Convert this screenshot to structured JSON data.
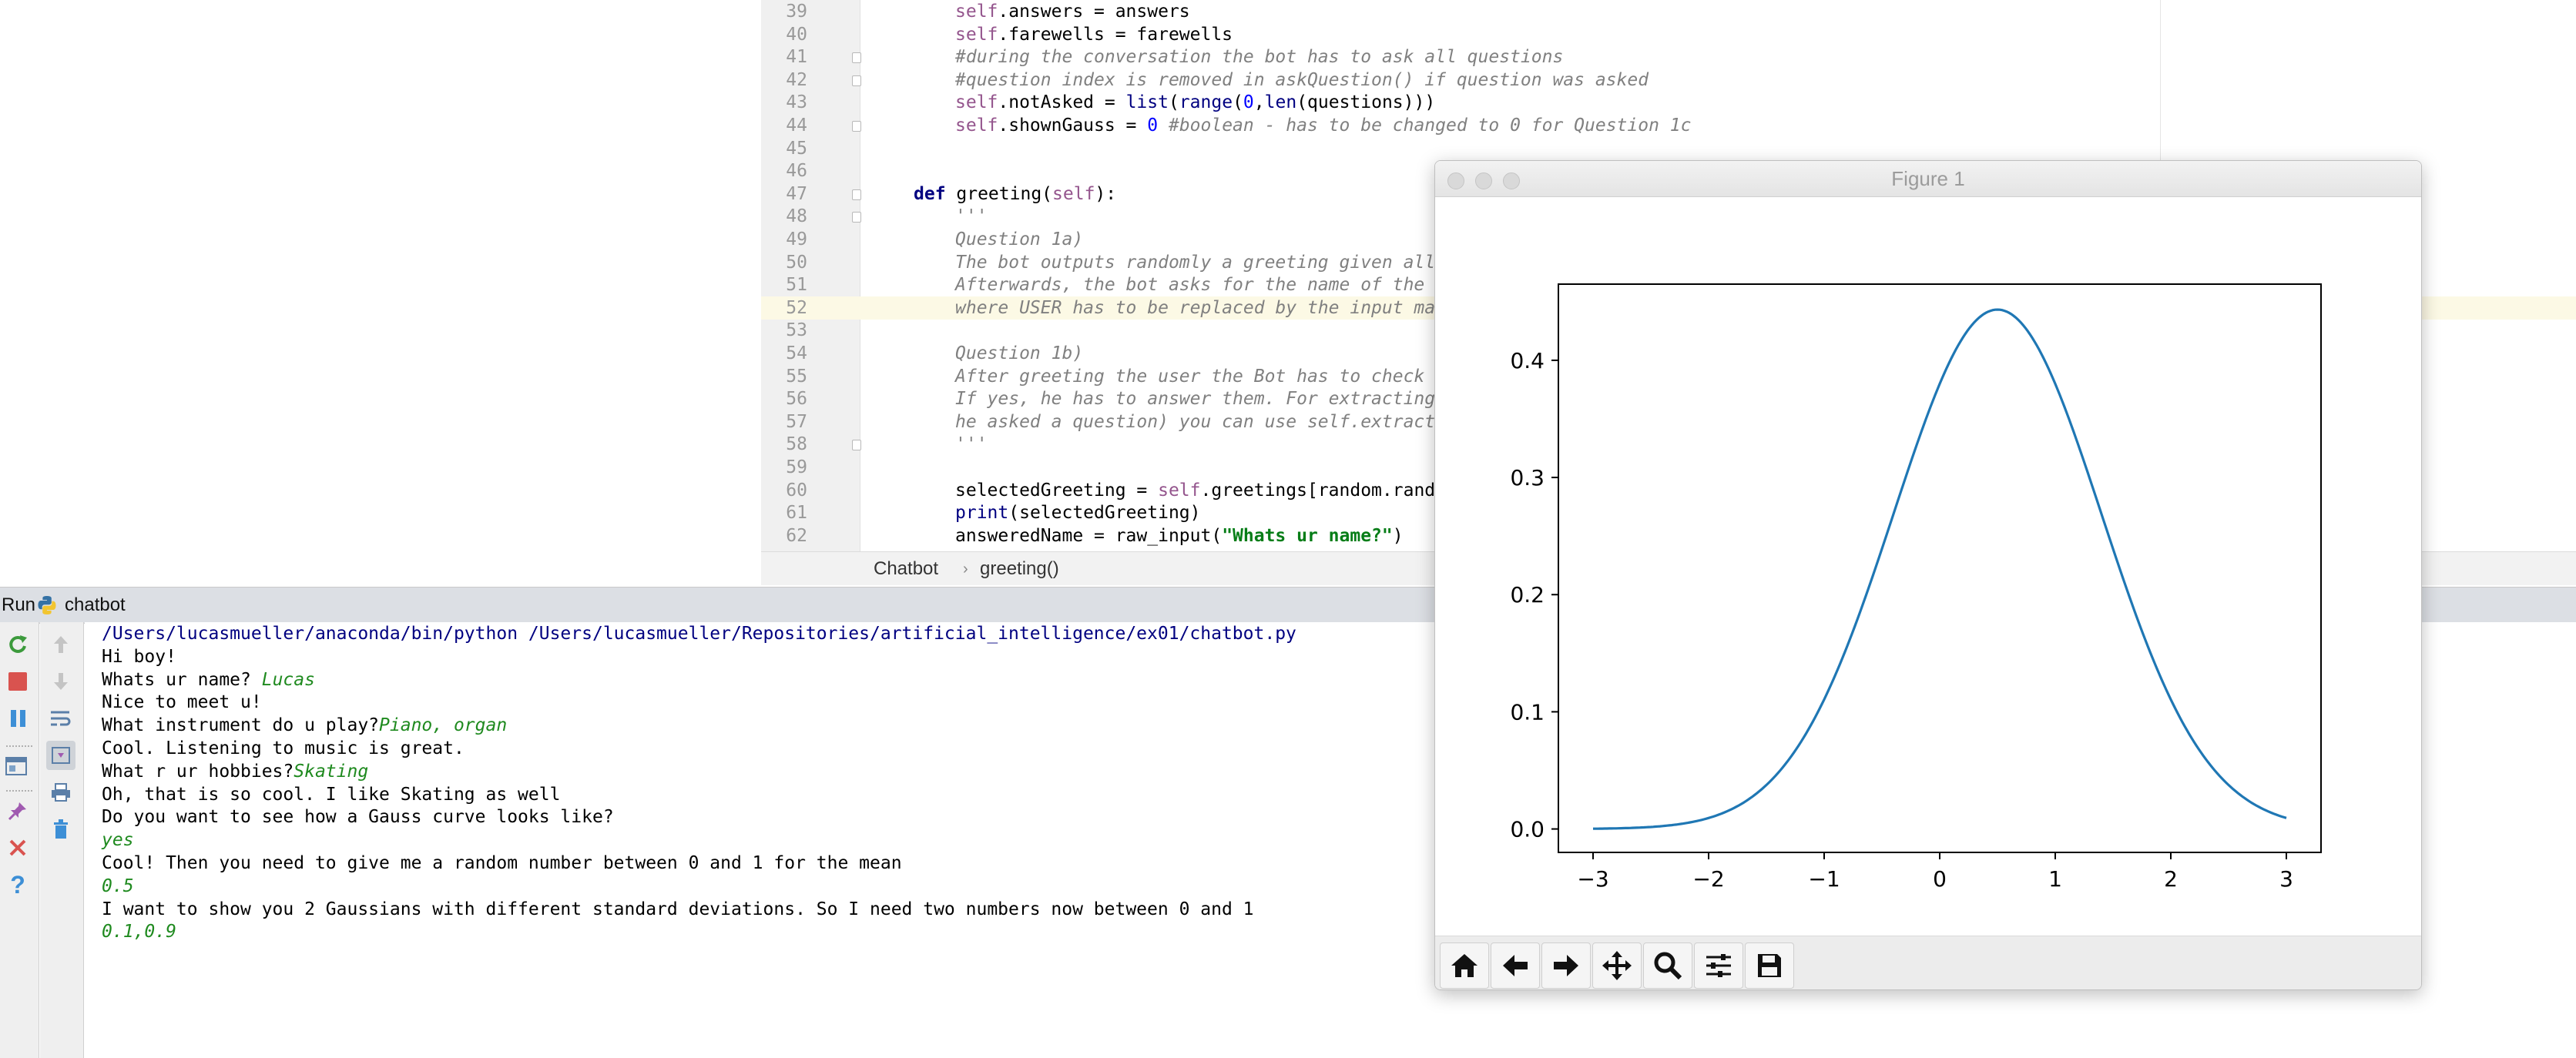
{
  "editor": {
    "lines": [
      {
        "n": "39",
        "segments": [
          {
            "t": "self",
            "c": "self"
          },
          {
            "t": ".answers = answers",
            "c": ""
          }
        ]
      },
      {
        "n": "40",
        "segments": [
          {
            "t": "self",
            "c": "self"
          },
          {
            "t": ".farewells = farewells",
            "c": ""
          }
        ]
      },
      {
        "n": "41",
        "segments": [
          {
            "t": "#during the conversation the bot has to ask all questions",
            "c": "cm"
          }
        ],
        "fold": true
      },
      {
        "n": "42",
        "segments": [
          {
            "t": "#question index is removed in askQuestion() if question was asked",
            "c": "cm"
          }
        ],
        "fold": true
      },
      {
        "n": "43",
        "segments": [
          {
            "t": "self",
            "c": "self"
          },
          {
            "t": ".notAsked = ",
            "c": ""
          },
          {
            "t": "list",
            "c": "builtin"
          },
          {
            "t": "(",
            "c": ""
          },
          {
            "t": "range",
            "c": "builtin"
          },
          {
            "t": "(",
            "c": ""
          },
          {
            "t": "0",
            "c": "num"
          },
          {
            "t": ",",
            "c": ""
          },
          {
            "t": "len",
            "c": "builtin"
          },
          {
            "t": "(questions)))",
            "c": ""
          }
        ]
      },
      {
        "n": "44",
        "segments": [
          {
            "t": "self",
            "c": "self"
          },
          {
            "t": ".shownGauss = ",
            "c": ""
          },
          {
            "t": "0",
            "c": "num"
          },
          {
            "t": " #boolean - has to be changed to 0 for Question 1c",
            "c": "cm"
          }
        ],
        "fold": true
      },
      {
        "n": "45",
        "segments": []
      },
      {
        "n": "46",
        "segments": []
      },
      {
        "n": "47",
        "segments": [
          {
            "t": "def ",
            "c": "kw"
          },
          {
            "t": "greeting",
            "c": "fn"
          },
          {
            "t": "(",
            "c": ""
          },
          {
            "t": "self",
            "c": "self"
          },
          {
            "t": "):",
            "c": ""
          }
        ],
        "fold": true,
        "indent": 1
      },
      {
        "n": "48",
        "segments": [
          {
            "t": "'''",
            "c": "cm"
          }
        ],
        "fold": true
      },
      {
        "n": "49",
        "segments": [
          {
            "t": "Question 1a)",
            "c": "cm"
          }
        ]
      },
      {
        "n": "50",
        "segments": [
          {
            "t": "The bot outputs randomly a greeting given all",
            "c": "cm"
          }
        ]
      },
      {
        "n": "51",
        "segments": [
          {
            "t": "Afterwards, the bot asks for the name of the",
            "c": "cm"
          }
        ]
      },
      {
        "n": "52",
        "segments": [
          {
            "t": "where USER has to be replaced by the input ma",
            "c": "cm"
          }
        ],
        "highlight": true
      },
      {
        "n": "53",
        "segments": []
      },
      {
        "n": "54",
        "segments": [
          {
            "t": "Question 1b)",
            "c": "cm"
          }
        ]
      },
      {
        "n": "55",
        "segments": [
          {
            "t": "After greeting the user the Bot has to check",
            "c": "cm"
          }
        ]
      },
      {
        "n": "56",
        "segments": [
          {
            "t": "If yes, he has to answer them. For extracting",
            "c": "cm"
          }
        ]
      },
      {
        "n": "57",
        "segments": [
          {
            "t": "he asked a question) you can use self.extract",
            "c": "cm"
          }
        ]
      },
      {
        "n": "58",
        "segments": [
          {
            "t": "'''",
            "c": "cm"
          }
        ],
        "fold": true
      },
      {
        "n": "59",
        "segments": []
      },
      {
        "n": "60",
        "segments": [
          {
            "t": "selectedGreeting = ",
            "c": ""
          },
          {
            "t": "self",
            "c": "self"
          },
          {
            "t": ".greetings[random.rand",
            "c": ""
          }
        ]
      },
      {
        "n": "61",
        "segments": [
          {
            "t": "print",
            "c": "builtin"
          },
          {
            "t": "(selectedGreeting)",
            "c": ""
          }
        ]
      },
      {
        "n": "62",
        "segments": [
          {
            "t": "answeredName = raw_input(",
            "c": ""
          },
          {
            "t": "\"Whats ur name?\"",
            "c": "str"
          },
          {
            "t": ")",
            "c": ""
          }
        ]
      }
    ],
    "breadcrumb": {
      "class_name": "Chatbot",
      "method_name": "greeting()"
    }
  },
  "run_panel": {
    "label": "Run",
    "tab_name": "chatbot",
    "console": [
      {
        "text": "/Users/lucasmueller/anaconda/bin/python /Users/lucasmueller/Repositories/artificial_intelligence/ex01/chatbot.py",
        "kind": "path"
      },
      {
        "text": "Hi boy!",
        "kind": "out"
      },
      {
        "parts": [
          {
            "text": "Whats ur name? ",
            "kind": "out"
          },
          {
            "text": "Lucas",
            "kind": "in"
          }
        ]
      },
      {
        "text": "Nice to meet u!",
        "kind": "out"
      },
      {
        "parts": [
          {
            "text": "What instrument do u play?",
            "kind": "out"
          },
          {
            "text": "Piano, organ",
            "kind": "in"
          }
        ]
      },
      {
        "text": "Cool. Listening to music is great.",
        "kind": "out"
      },
      {
        "parts": [
          {
            "text": "What r ur hobbies?",
            "kind": "out"
          },
          {
            "text": "Skating",
            "kind": "in"
          }
        ]
      },
      {
        "text": "Oh, that is so cool. I like Skating as well",
        "kind": "out"
      },
      {
        "text": "Do you want to see how a Gauss curve looks like?",
        "kind": "out"
      },
      {
        "text": "yes",
        "kind": "in"
      },
      {
        "text": "Cool! Then you need to give me a random number between 0 and 1 for the mean",
        "kind": "out"
      },
      {
        "text": "0.5",
        "kind": "in"
      },
      {
        "text": "I want to show you 2 Gaussians with different standard deviations. So I need two numbers now between 0 and 1",
        "kind": "out"
      },
      {
        "text": "0.1,0.9",
        "kind": "in"
      }
    ],
    "colors": {
      "path": "#000080",
      "input": "#1f8a1f",
      "output": "#000000"
    }
  },
  "figure_window": {
    "title": "Figure 1",
    "toolbar": [
      "home-icon",
      "back-arrow-icon",
      "forward-arrow-icon",
      "pan-icon",
      "zoom-icon",
      "configure-subplots-icon",
      "save-icon"
    ]
  },
  "chart_data": {
    "type": "line",
    "title": "",
    "xlabel": "",
    "ylabel": "",
    "xlim": [
      -3.3,
      3.3
    ],
    "ylim": [
      -0.02,
      0.465
    ],
    "x_ticks": [
      -3,
      -2,
      -1,
      0,
      1,
      2,
      3
    ],
    "x_tick_labels": [
      "−3",
      "−2",
      "−1",
      "0",
      "1",
      "2",
      "3"
    ],
    "y_ticks": [
      0.0,
      0.1,
      0.2,
      0.3,
      0.4
    ],
    "y_tick_labels": [
      "0.0",
      "0.1",
      "0.2",
      "0.3",
      "0.4"
    ],
    "grid": false,
    "series": [
      {
        "color": "#1f77b4",
        "mean": 0.5,
        "std": 0.9,
        "x": [
          -3.0,
          -2.5,
          -2.0,
          -1.5,
          -1.0,
          -0.5,
          0.0,
          0.25,
          0.5,
          0.75,
          1.0,
          1.5,
          2.0,
          2.5,
          3.0
        ],
        "y": [
          0.0001,
          0.001,
          0.0094,
          0.0375,
          0.1109,
          0.2424,
          0.3804,
          0.4289,
          0.4433,
          0.4289,
          0.3804,
          0.2424,
          0.1109,
          0.0375,
          0.0094
        ]
      }
    ]
  }
}
